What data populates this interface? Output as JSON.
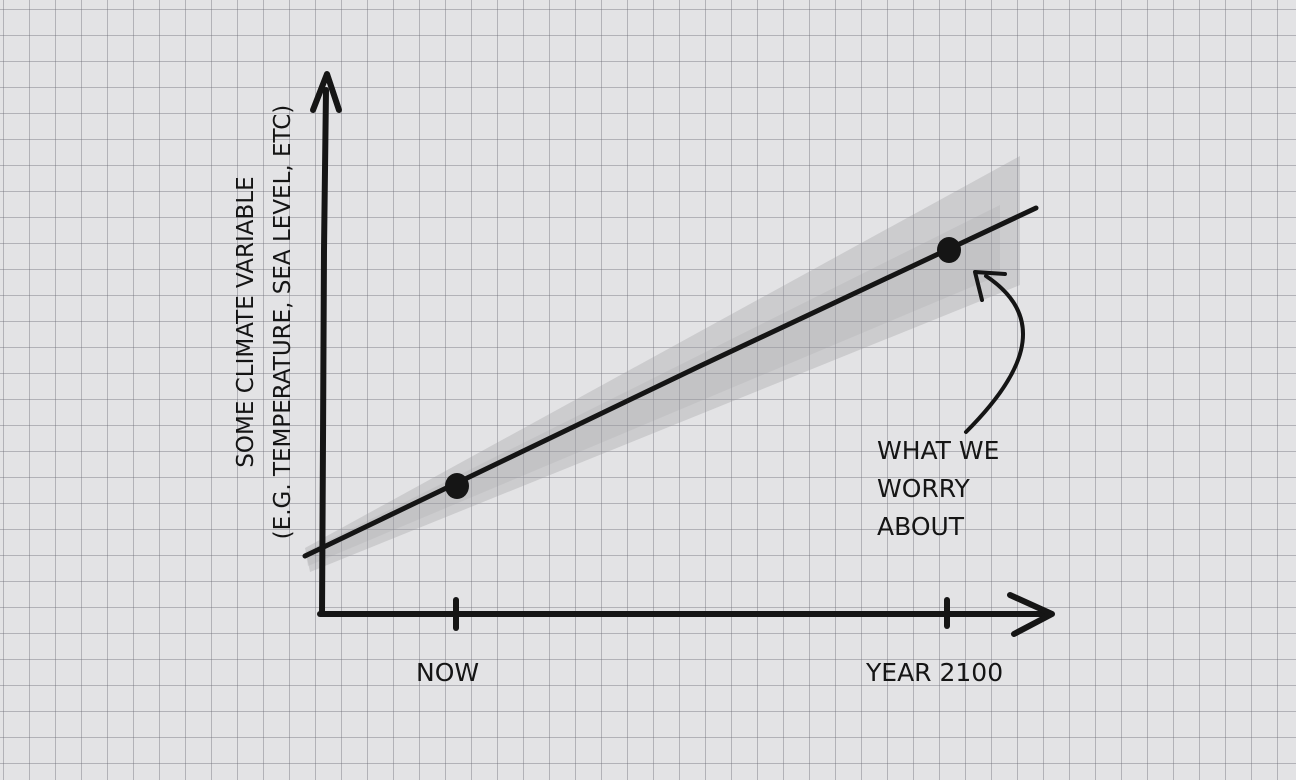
{
  "diagram": {
    "y_axis_label": [
      "SOME CLIMATE VARIABLE",
      "(E.G. TEMPERATURE, SEA LEVEL, ETC)"
    ],
    "x_ticks": [
      "NOW",
      "YEAR 2100"
    ],
    "annotation": [
      "WHAT WE",
      "WORRY",
      "ABOUT"
    ]
  },
  "colors": {
    "ink": "#151515",
    "paper": "#e3e3e5",
    "grid": "#8a8a94",
    "uncertainty_band": "#9a9a9e"
  }
}
